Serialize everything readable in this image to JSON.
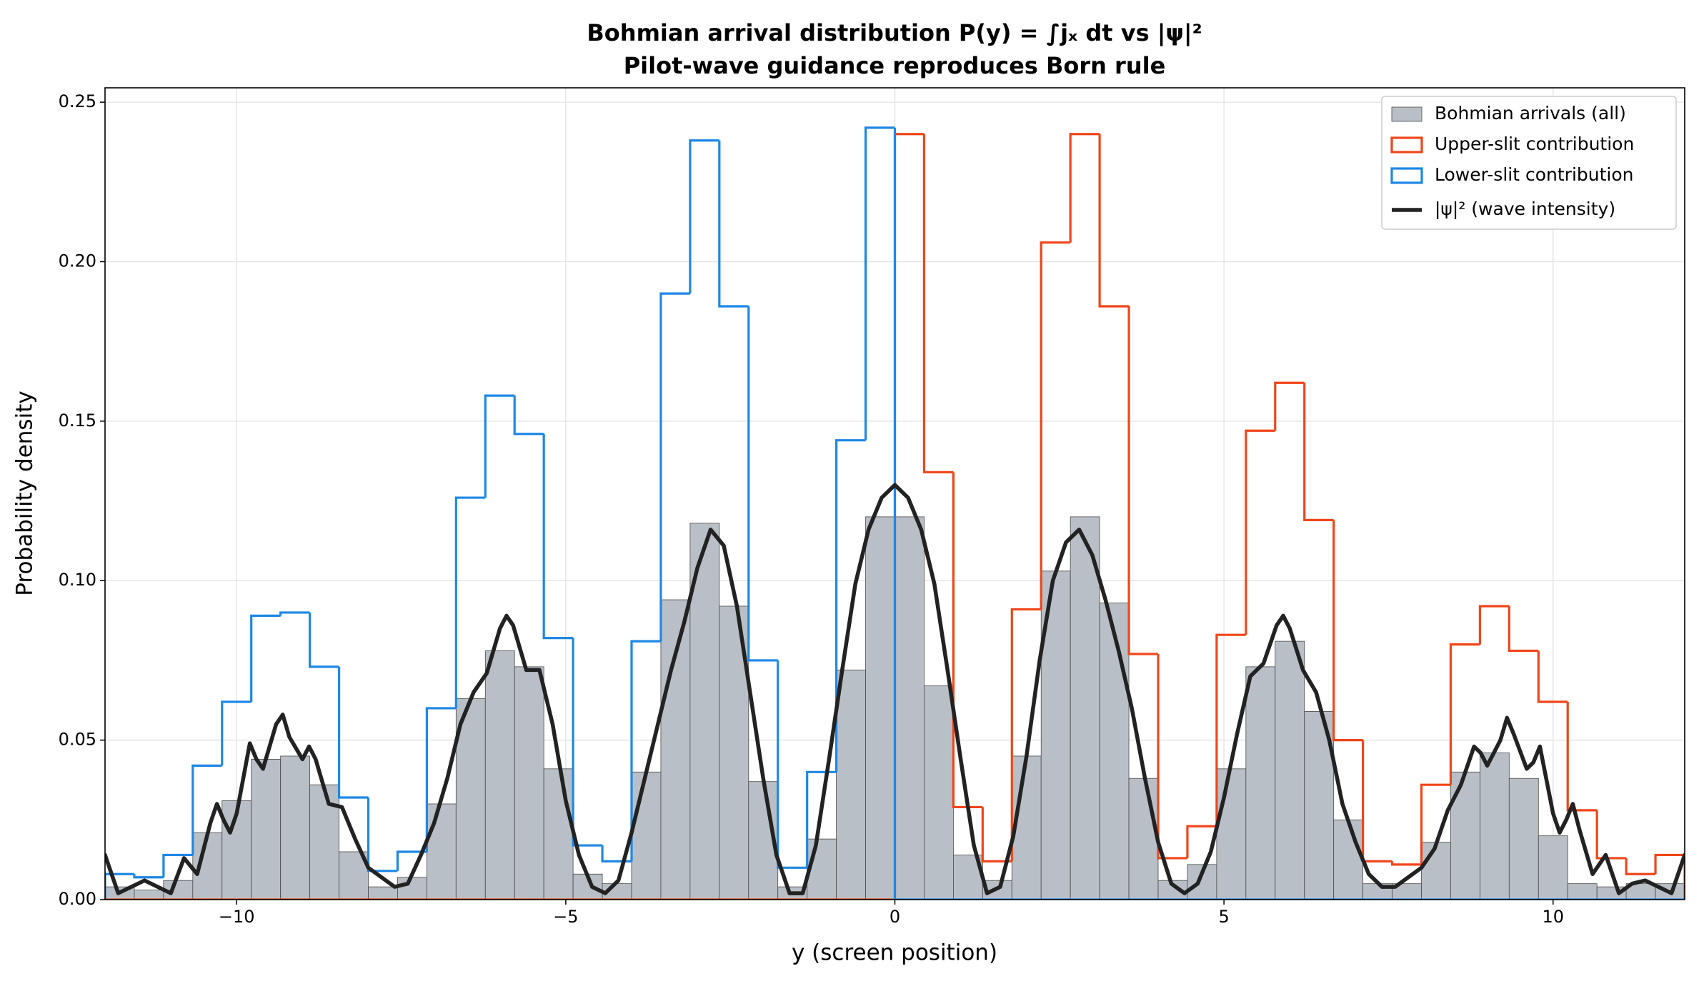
{
  "chart_data": {
    "type": "histogram",
    "title": "Bohmian arrival distribution P(y) = ∫jₓ dt vs |ψ|²",
    "subtitle": "Pilot-wave guidance reproduces Born rule",
    "xlabel": "y  (screen position)",
    "ylabel": "Probability density",
    "xlim": [
      -12,
      12
    ],
    "ylim": [
      0,
      0.2545
    ],
    "xticks": [
      {
        "value": -10,
        "label": "−10"
      },
      {
        "value": -5,
        "label": "−5"
      },
      0,
      5,
      10
    ],
    "yticks": [
      {
        "value": 0,
        "label": "0.00"
      },
      0.05,
      {
        "value": 0.1,
        "label": "0.10"
      },
      0.15,
      {
        "value": 0.2,
        "label": "0.20"
      },
      0.25
    ],
    "grid": true,
    "legend": "upper right",
    "bins": [
      -12,
      -11.5556,
      -11.1111,
      -10.6667,
      -10.2222,
      -9.7778,
      -9.3333,
      -8.8889,
      -8.4444,
      -8,
      -7.5556,
      -7.1111,
      -6.6667,
      -6.2222,
      -5.7778,
      -5.3333,
      -4.8889,
      -4.4444,
      -4,
      -3.5556,
      -3.1111,
      -2.6667,
      -2.2222,
      -1.7778,
      -1.3333,
      -0.8889,
      -0.4444,
      0,
      0.4444,
      0.8889,
      1.3333,
      1.7778,
      2.2222,
      2.6667,
      3.1111,
      3.5556,
      4,
      4.4444,
      4.8889,
      5.3333,
      5.7778,
      6.2222,
      6.6667,
      7.1111,
      7.5556,
      8,
      8.4444,
      8.8889,
      9.3333,
      9.7778,
      10.2222,
      10.6667,
      11.1111,
      11.5556,
      12
    ],
    "series": [
      {
        "name": "Bohmian arrivals (all)",
        "histtype": "bar",
        "color": "#b8bfc6",
        "edgecolor": "#4a4a4a",
        "values": [
          0.004,
          0.003,
          0.006,
          0.021,
          0.031,
          0.044,
          0.045,
          0.036,
          0.015,
          0.004,
          0.007,
          0.03,
          0.063,
          0.078,
          0.073,
          0.041,
          0.008,
          0.005,
          0.04,
          0.094,
          0.118,
          0.092,
          0.037,
          0.004,
          0.019,
          0.072,
          0.12,
          0.12,
          0.067,
          0.014,
          0.006,
          0.045,
          0.103,
          0.12,
          0.093,
          0.038,
          0.006,
          0.011,
          0.041,
          0.073,
          0.081,
          0.059,
          0.025,
          0.005,
          0.005,
          0.018,
          0.04,
          0.046,
          0.038,
          0.02,
          0.005,
          0.004,
          0.005,
          0.005
        ]
      },
      {
        "name": "Upper-slit contribution",
        "histtype": "step",
        "color": "#f0461a",
        "values": [
          0,
          0,
          0,
          0,
          0,
          0,
          0,
          0,
          0,
          0,
          0,
          0,
          0,
          0,
          0,
          0,
          0,
          0,
          0,
          0,
          0,
          0,
          0,
          0,
          0,
          0,
          0,
          0.24,
          0.134,
          0.029,
          0.012,
          0.091,
          0.206,
          0.24,
          0.186,
          0.077,
          0.013,
          0.023,
          0.083,
          0.147,
          0.162,
          0.119,
          0.05,
          0.012,
          0.011,
          0.036,
          0.08,
          0.092,
          0.078,
          0.062,
          0.028,
          0.013,
          0.008,
          0.014
        ]
      },
      {
        "name": "Lower-slit contribution",
        "histtype": "step",
        "color": "#1e88e5",
        "values": [
          0.008,
          0.007,
          0.014,
          0.042,
          0.062,
          0.089,
          0.09,
          0.073,
          0.032,
          0.009,
          0.015,
          0.06,
          0.126,
          0.158,
          0.146,
          0.082,
          0.017,
          0.012,
          0.081,
          0.19,
          0.238,
          0.186,
          0.075,
          0.01,
          0.04,
          0.144,
          0.242,
          0,
          0,
          0,
          0,
          0,
          0,
          0,
          0,
          0,
          0,
          0,
          0,
          0,
          0,
          0,
          0,
          0,
          0,
          0,
          0,
          0,
          0,
          0,
          0,
          0,
          0,
          0
        ]
      },
      {
        "name": "|ψ|² (wave intensity)",
        "type": "line",
        "color": "#222222",
        "x": [
          -12,
          -11.8,
          -11.6,
          -11.4,
          -11.2,
          -11,
          -10.8,
          -10.6,
          -10.4,
          -10.3,
          -10.2,
          -10.1,
          -10,
          -9.8,
          -9.7,
          -9.6,
          -9.4,
          -9.3,
          -9.2,
          -9,
          -8.9,
          -8.8,
          -8.6,
          -8.4,
          -8.2,
          -8,
          -7.6,
          -7.4,
          -7.2,
          -7,
          -6.8,
          -6.6,
          -6.4,
          -6.2,
          -6,
          -5.9,
          -5.8,
          -5.6,
          -5.4,
          -5.2,
          -5,
          -4.8,
          -4.6,
          -4.4,
          -4.2,
          -4,
          -3.8,
          -3.6,
          -3.4,
          -3.2,
          -3,
          -2.8,
          -2.6,
          -2.4,
          -2.2,
          -2,
          -1.8,
          -1.6,
          -1.4,
          -1.2,
          -1,
          -0.8,
          -0.6,
          -0.4,
          -0.2,
          0,
          0.2,
          0.4,
          0.6,
          0.8,
          1,
          1.2,
          1.4,
          1.6,
          1.8,
          2,
          2.2,
          2.4,
          2.6,
          2.8,
          3,
          3.2,
          3.4,
          3.6,
          3.8,
          4,
          4.2,
          4.4,
          4.6,
          4.8,
          5,
          5.2,
          5.4,
          5.6,
          5.8,
          5.9,
          6,
          6.2,
          6.4,
          6.6,
          6.8,
          7,
          7.2,
          7.4,
          7.6,
          7.8,
          8,
          8.2,
          8.4,
          8.6,
          8.8,
          8.9,
          9,
          9.2,
          9.3,
          9.4,
          9.6,
          9.7,
          9.8,
          10,
          10.1,
          10.2,
          10.3,
          10.4,
          10.6,
          10.8,
          11,
          11.2,
          11.4,
          11.6,
          11.8,
          12
        ],
        "values": [
          0.014,
          0.002,
          0.004,
          0.006,
          0.004,
          0.002,
          0.013,
          0.008,
          0.024,
          0.03,
          0.025,
          0.021,
          0.027,
          0.049,
          0.044,
          0.041,
          0.055,
          0.058,
          0.051,
          0.044,
          0.048,
          0.044,
          0.03,
          0.029,
          0.019,
          0.01,
          0.004,
          0.005,
          0.014,
          0.024,
          0.038,
          0.055,
          0.065,
          0.071,
          0.085,
          0.089,
          0.086,
          0.072,
          0.072,
          0.055,
          0.031,
          0.014,
          0.004,
          0.002,
          0.006,
          0.021,
          0.038,
          0.055,
          0.072,
          0.087,
          0.104,
          0.116,
          0.111,
          0.092,
          0.065,
          0.038,
          0.014,
          0.002,
          0.002,
          0.017,
          0.044,
          0.072,
          0.099,
          0.116,
          0.126,
          0.13,
          0.126,
          0.116,
          0.099,
          0.072,
          0.044,
          0.017,
          0.002,
          0.004,
          0.02,
          0.045,
          0.075,
          0.1,
          0.112,
          0.116,
          0.108,
          0.094,
          0.078,
          0.06,
          0.038,
          0.018,
          0.005,
          0.002,
          0.005,
          0.015,
          0.032,
          0.052,
          0.07,
          0.074,
          0.086,
          0.089,
          0.085,
          0.072,
          0.065,
          0.05,
          0.03,
          0.018,
          0.008,
          0.004,
          0.004,
          0.007,
          0.01,
          0.016,
          0.028,
          0.036,
          0.048,
          0.046,
          0.042,
          0.05,
          0.057,
          0.052,
          0.041,
          0.043,
          0.048,
          0.027,
          0.021,
          0.025,
          0.03,
          0.022,
          0.008,
          0.014,
          0.002,
          0.005,
          0.006,
          0.004,
          0.002,
          0.014
        ]
      }
    ]
  }
}
